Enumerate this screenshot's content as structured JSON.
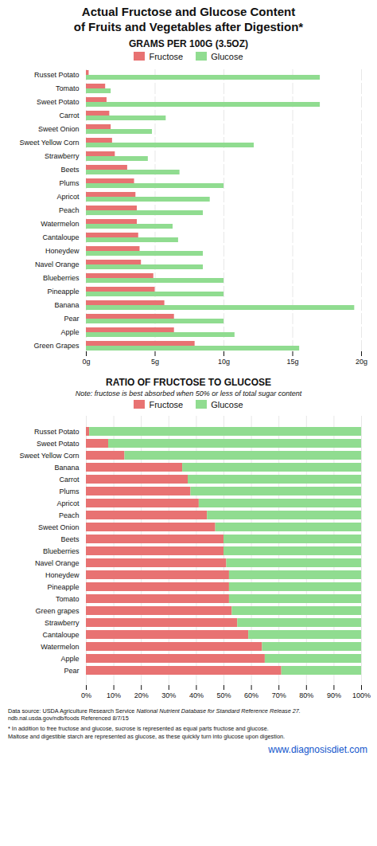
{
  "chart_data": [
    {
      "type": "bar",
      "orientation": "horizontal",
      "title": "Actual Fructose and Glucose Content\nof Fruits and Vegetables after Digestion*",
      "subtitle": "GRAMS PER 100G (3.5OZ)",
      "categories": [
        "Russet Potato",
        "Tomato",
        "Sweet Potato",
        "Carrot",
        "Sweet Onion",
        "Sweet Yellow Corn",
        "Strawberry",
        "Beets",
        "Plums",
        "Apricot",
        "Peach",
        "Watermelon",
        "Cantaloupe",
        "Honeydew",
        "Navel Orange",
        "Blueberries",
        "Pineapple",
        "Banana",
        "Pear",
        "Apple",
        "Green Grapes"
      ],
      "series": [
        {
          "name": "Fructose",
          "color": "#e87272",
          "values": [
            0.2,
            1.4,
            1.5,
            1.7,
            1.8,
            1.9,
            2.1,
            3.0,
            3.5,
            3.6,
            3.7,
            3.7,
            3.8,
            3.9,
            4.0,
            4.9,
            5.0,
            5.7,
            6.4,
            6.4,
            7.9
          ]
        },
        {
          "name": "Glucose",
          "color": "#90dc90",
          "values": [
            17.0,
            1.8,
            17.0,
            5.8,
            4.8,
            12.2,
            4.5,
            6.8,
            10.0,
            9.0,
            8.5,
            6.3,
            6.7,
            8.5,
            8.5,
            10.0,
            10.0,
            19.5,
            10.0,
            10.8,
            15.5
          ]
        }
      ],
      "xlim": [
        0,
        20
      ],
      "xticks": [
        {
          "value": 0,
          "label": "0g"
        },
        {
          "value": 5,
          "label": "5g"
        },
        {
          "value": 10,
          "label": "10g"
        },
        {
          "value": 15,
          "label": "15g"
        },
        {
          "value": 20,
          "label": "20g"
        }
      ],
      "grid": true,
      "legend": "top"
    },
    {
      "type": "bar",
      "orientation": "horizontal",
      "stacked": true,
      "title": "RATIO OF FRUCTOSE TO GLUCOSE",
      "subtitle": "Note: fructose is best absorbed when 50% or less of total sugar content",
      "categories": [
        "Russet Potato",
        "Sweet Potato",
        "Sweet Yellow Corn",
        "Banana",
        "Carrot",
        "Plums",
        "Apricot",
        "Peach",
        "Sweet Onion",
        "Beets",
        "Blueberries",
        "Navel Orange",
        "Honeydew",
        "Pineapple",
        "Tomato",
        "Green grapes",
        "Strawberry",
        "Cantaloupe",
        "Watermelon",
        "Apple",
        "Pear"
      ],
      "series": [
        {
          "name": "Fructose",
          "color": "#e87272",
          "values": [
            1.2,
            8.1,
            14.0,
            35.0,
            37.0,
            38.0,
            41.0,
            44.0,
            47.0,
            50.0,
            50.0,
            51.0,
            52.0,
            52.0,
            52.0,
            53.0,
            55.0,
            59.0,
            64.0,
            65.0,
            71.0
          ]
        },
        {
          "name": "Glucose",
          "color": "#90dc90",
          "values": [
            98.8,
            91.9,
            86.0,
            65.0,
            63.0,
            62.0,
            59.0,
            56.0,
            53.0,
            50.0,
            50.0,
            49.0,
            48.0,
            48.0,
            48.0,
            47.0,
            45.0,
            41.0,
            36.0,
            35.0,
            29.0
          ]
        }
      ],
      "xlim": [
        0,
        100
      ],
      "xticks": [
        {
          "value": 0,
          "label": "0%"
        },
        {
          "value": 10,
          "label": "10%"
        },
        {
          "value": 20,
          "label": "20%"
        },
        {
          "value": 30,
          "label": "30%"
        },
        {
          "value": 40,
          "label": "40%"
        },
        {
          "value": 50,
          "label": "50%"
        },
        {
          "value": 60,
          "label": "60%"
        },
        {
          "value": 70,
          "label": "70%"
        },
        {
          "value": 80,
          "label": "80%"
        },
        {
          "value": 90,
          "label": "90%"
        },
        {
          "value": 100,
          "label": "100%"
        }
      ],
      "grid": true,
      "legend": "top",
      "annotations": [
        "Data source: USDA Agriculture Research Service ",
        "National Nutrient Database for Standard Reference Release 27.",
        "ndb.nal.usda.gov/ndb/foods Referenced 8/7/15",
        "* In addition to free fructose and glucose, sucrose is represented as equal parts fructose and glucose.\nMaltose and digestible starch are represented as glucose, as these quickly turn into glucose upon digestion.",
        "www.diagnosisdiet.com"
      ]
    }
  ]
}
